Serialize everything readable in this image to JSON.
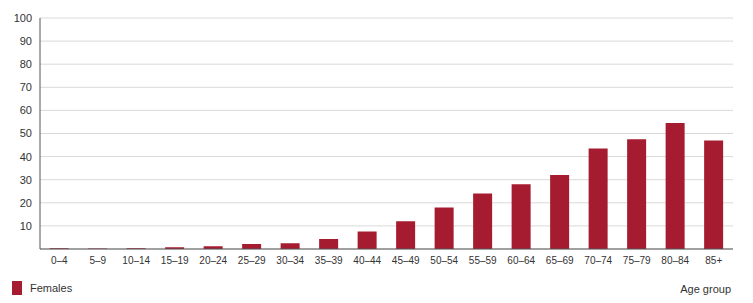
{
  "chart_data": {
    "type": "bar",
    "x_label": "Age group",
    "categories": [
      "0–4",
      "5–9",
      "10–14",
      "15–19",
      "20–24",
      "25–29",
      "30–34",
      "35–39",
      "40–44",
      "45–49",
      "50–54",
      "55–59",
      "60–64",
      "65–69",
      "70–74",
      "75–79",
      "80–84",
      "85+"
    ],
    "series": [
      {
        "name": "Females",
        "color": "#a51c30",
        "values": [
          0.3,
          0.2,
          0.3,
          0.8,
          1.2,
          2.2,
          2.5,
          4.3,
          7.6,
          12,
          18,
          24,
          28,
          32,
          43.5,
          47.5,
          54.5,
          47
        ]
      }
    ],
    "ylim": [
      0,
      100
    ],
    "yticks": [
      10,
      20,
      30,
      40,
      50,
      60,
      70,
      80,
      90,
      100
    ],
    "grid": true,
    "legend": "bottom left"
  }
}
